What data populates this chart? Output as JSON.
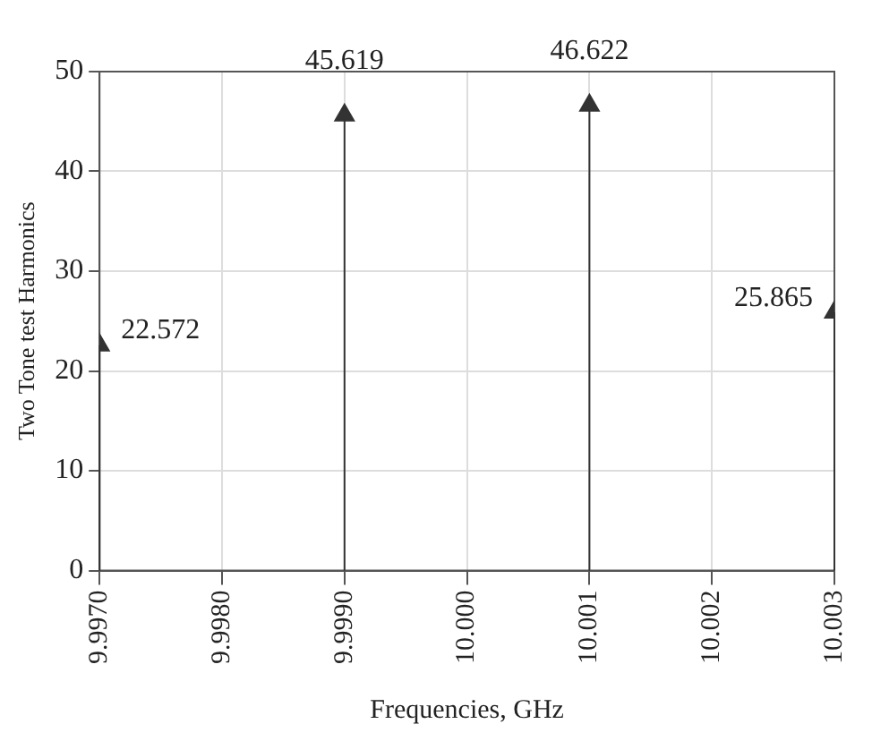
{
  "chart_data": {
    "type": "lollipop",
    "xlabel": "Frequencies, GHz",
    "ylabel": "Two Tone test Harmonics",
    "x": [
      9.997,
      9.999,
      10.001,
      10.003
    ],
    "values": [
      22.572,
      45.619,
      46.622,
      25.865
    ],
    "color": "#333333",
    "marker": "triangle",
    "data_labels": true,
    "grid": true,
    "xlim": [
      9.997,
      10.003
    ],
    "xticks": [
      {
        "value": 9.997,
        "label": "9.9970"
      },
      {
        "value": 9.998,
        "label": "9.9980"
      },
      {
        "value": 9.999,
        "label": "9.9990"
      },
      {
        "value": 10.0,
        "label": "10.000"
      },
      {
        "value": 10.001,
        "label": "10.001"
      },
      {
        "value": 10.002,
        "label": "10.002"
      },
      {
        "value": 10.003,
        "label": "10.003"
      }
    ],
    "ylim": [
      0,
      50
    ],
    "yticks": [
      0,
      10,
      20,
      30,
      40,
      50
    ]
  }
}
